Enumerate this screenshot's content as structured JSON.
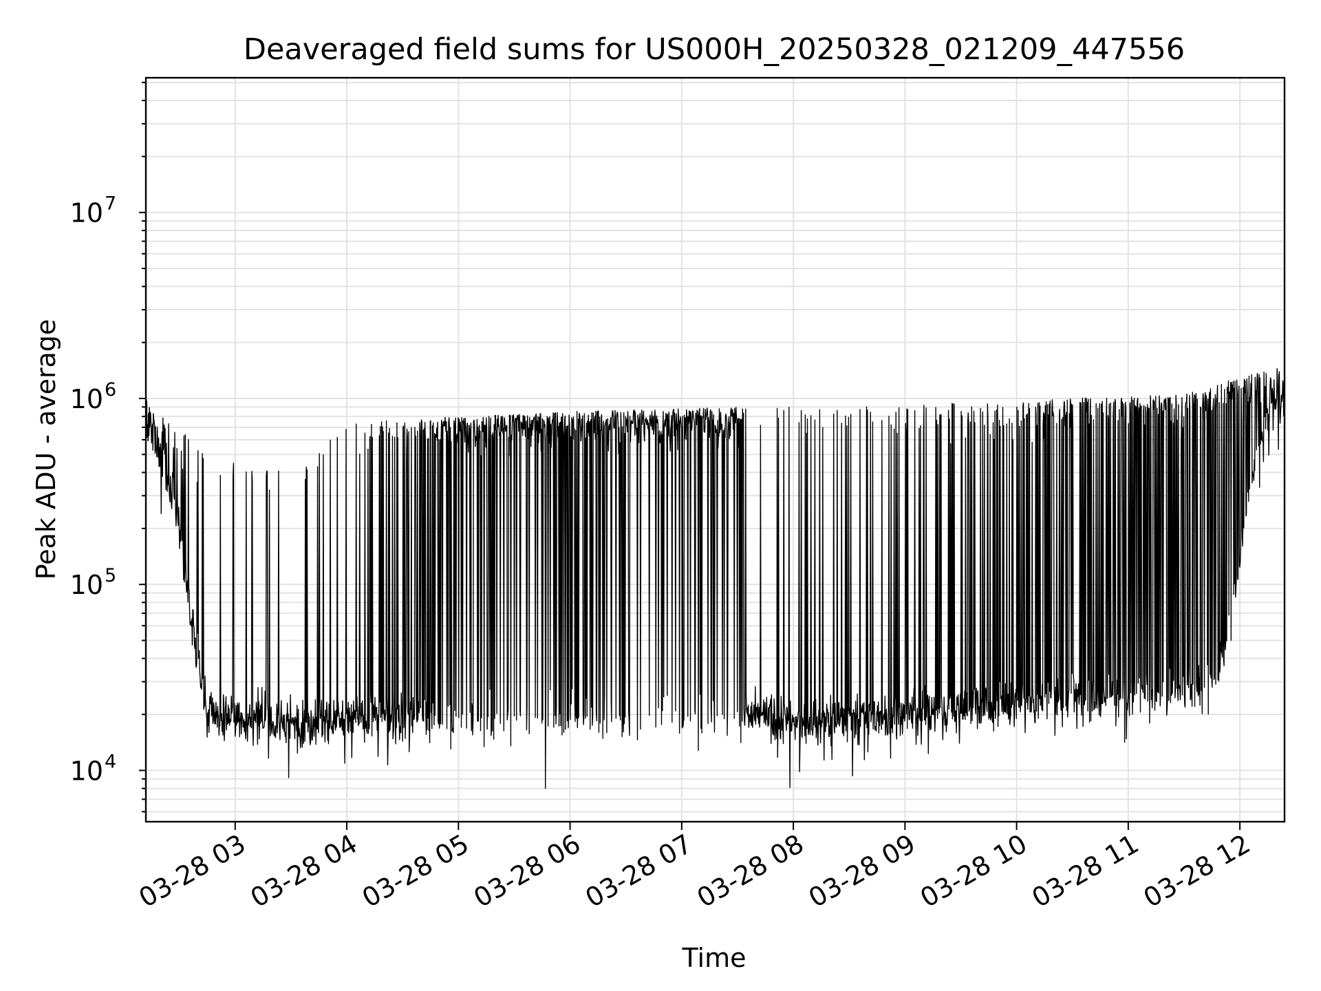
{
  "chart_data": {
    "type": "line",
    "title": "Deaveraged field sums for US000H_20250328_021209_447556",
    "xlabel": "Time",
    "ylabel": "Peak ADU - average",
    "y_scale": "log",
    "grid": true,
    "xlim": [
      "03-28 02:12",
      "03-28 12:24"
    ],
    "ylim": [
      5300,
      53000000
    ],
    "x_ticks": [
      {
        "value": "03-28 03",
        "label": "03-28 03"
      },
      {
        "value": "03-28 04",
        "label": "03-28 04"
      },
      {
        "value": "03-28 05",
        "label": "03-28 05"
      },
      {
        "value": "03-28 06",
        "label": "03-28 06"
      },
      {
        "value": "03-28 07",
        "label": "03-28 07"
      },
      {
        "value": "03-28 08",
        "label": "03-28 08"
      },
      {
        "value": "03-28 09",
        "label": "03-28 09"
      },
      {
        "value": "03-28 10",
        "label": "03-28 10"
      },
      {
        "value": "03-28 11",
        "label": "03-28 11"
      },
      {
        "value": "03-28 12",
        "label": "03-28 12"
      }
    ],
    "y_ticks": [
      {
        "value": 10000,
        "base": "10",
        "exp": "4"
      },
      {
        "value": 100000,
        "base": "10",
        "exp": "5"
      },
      {
        "value": 1000000,
        "base": "10",
        "exp": "6"
      },
      {
        "value": 10000000,
        "base": "10",
        "exp": "7"
      }
    ],
    "series": [
      {
        "color": "#000000",
        "profile": {
          "baseline": [
            {
              "x": "03-28 02:12",
              "y": 700000
            },
            {
              "x": "03-28 02:20",
              "y": 500000
            },
            {
              "x": "03-28 02:30",
              "y": 200000
            },
            {
              "x": "03-28 02:38",
              "y": 50000
            },
            {
              "x": "03-28 02:45",
              "y": 20000
            },
            {
              "x": "03-28 03:30",
              "y": 18000
            },
            {
              "x": "03-28 04:30",
              "y": 20000
            },
            {
              "x": "03-28 05:30",
              "y": 18000
            },
            {
              "x": "03-28 06:30",
              "y": 19000
            },
            {
              "x": "03-28 07:33",
              "y": 20000
            },
            {
              "x": "03-28 08:00",
              "y": 18000
            },
            {
              "x": "03-28 09:00",
              "y": 20000
            },
            {
              "x": "03-28 10:00",
              "y": 23000
            },
            {
              "x": "03-28 11:00",
              "y": 25000
            },
            {
              "x": "03-28 11:45",
              "y": 28000
            },
            {
              "x": "03-28 11:55",
              "y": 60000
            },
            {
              "x": "03-28 12:05",
              "y": 300000
            },
            {
              "x": "03-28 12:15",
              "y": 800000
            },
            {
              "x": "03-28 12:24",
              "y": 1100000
            }
          ],
          "spike_level": [
            {
              "x": "03-28 02:12",
              "y": 1000000
            },
            {
              "x": "03-28 02:45",
              "y": 500000
            },
            {
              "x": "03-28 03:30",
              "y": 400000
            },
            {
              "x": "03-28 04:00",
              "y": 750000
            },
            {
              "x": "03-28 05:00",
              "y": 800000
            },
            {
              "x": "03-28 06:00",
              "y": 850000
            },
            {
              "x": "03-28 07:00",
              "y": 880000
            },
            {
              "x": "03-28 07:33",
              "y": 900000
            },
            {
              "x": "03-28 08:30",
              "y": 900000
            },
            {
              "x": "03-28 09:30",
              "y": 950000
            },
            {
              "x": "03-28 10:30",
              "y": 1000000
            },
            {
              "x": "03-28 11:30",
              "y": 1050000
            },
            {
              "x": "03-28 12:00",
              "y": 1300000
            },
            {
              "x": "03-28 12:24",
              "y": 1500000
            }
          ],
          "spike_density": [
            {
              "x": "03-28 02:12",
              "y": 0.35
            },
            {
              "x": "03-28 02:45",
              "y": 0.05
            },
            {
              "x": "03-28 03:40",
              "y": 0.05
            },
            {
              "x": "03-28 04:15",
              "y": 0.18
            },
            {
              "x": "03-28 04:45",
              "y": 0.5
            },
            {
              "x": "03-28 05:00",
              "y": 0.75
            },
            {
              "x": "03-28 07:32",
              "y": 0.85
            },
            {
              "x": "03-28 07:34",
              "y": 0.02
            },
            {
              "x": "03-28 08:00",
              "y": 0.06
            },
            {
              "x": "03-28 09:00",
              "y": 0.15
            },
            {
              "x": "03-28 10:00",
              "y": 0.28
            },
            {
              "x": "03-28 11:00",
              "y": 0.45
            },
            {
              "x": "03-28 11:50",
              "y": 0.55
            },
            {
              "x": "03-28 12:24",
              "y": 0.3
            }
          ],
          "y_min": 8000,
          "y_max": 2000000
        }
      }
    ]
  }
}
